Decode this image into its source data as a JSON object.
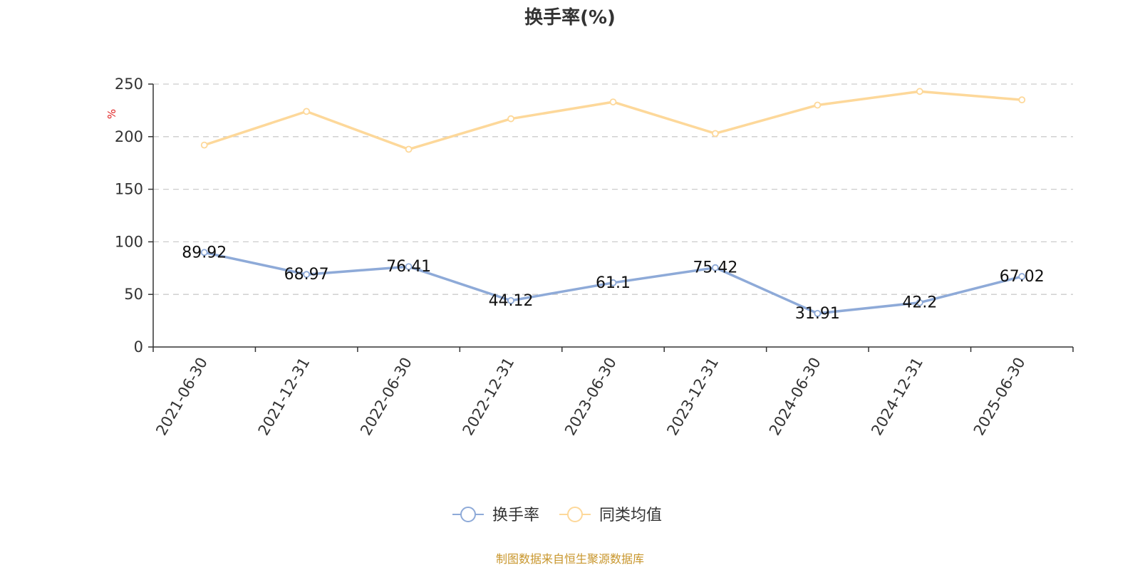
{
  "chart_data": {
    "type": "line",
    "title": "换手率(%)",
    "ylabel": "%",
    "xlabel": "",
    "categories": [
      "2021-06-30",
      "2021-12-31",
      "2022-06-30",
      "2022-12-31",
      "2023-06-30",
      "2023-12-31",
      "2024-06-30",
      "2024-12-31",
      "2025-06-30"
    ],
    "ylim": [
      0,
      250
    ],
    "yticks": [
      "0",
      "50",
      "100",
      "150",
      "200",
      "250"
    ],
    "grid": true,
    "legend_position": "bottom-center",
    "series": [
      {
        "name": "换手率",
        "values": [
          89.92,
          68.97,
          76.41,
          44.12,
          61.1,
          75.42,
          31.91,
          42.2,
          67.02
        ],
        "labels": [
          "89.92",
          "68.97",
          "76.41",
          "44.12",
          "61.1",
          "75.42",
          "31.91",
          "42.2",
          "67.02"
        ],
        "color": "#8eaad8"
      },
      {
        "name": "同类均值",
        "values": [
          192,
          224,
          188,
          217,
          233,
          203,
          230,
          243,
          235
        ],
        "color": "#fdd89a"
      }
    ]
  },
  "source_text": "制图数据来自恒生聚源数据库",
  "colors": {
    "unit_label": "#e02020",
    "source_text": "#c8962c",
    "axis": "#333333",
    "grid": "#cccccc"
  }
}
